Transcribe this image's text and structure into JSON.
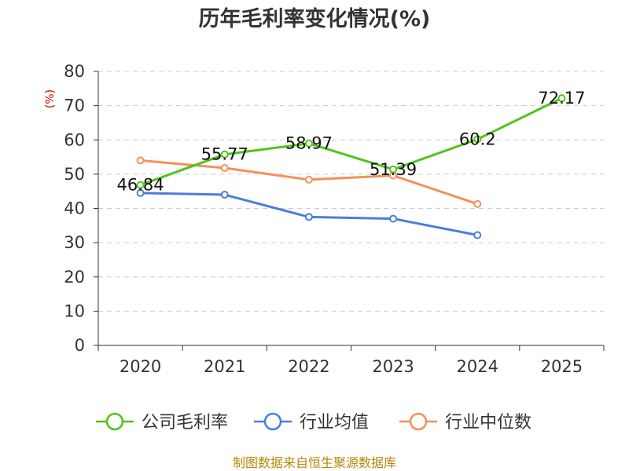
{
  "chart_data": {
    "type": "line",
    "title": "历年毛利率变化情况(%)",
    "ylabel": "(%)",
    "xlabel": "",
    "ylim": [
      0,
      80
    ],
    "yticks": [
      0,
      10,
      20,
      30,
      40,
      50,
      60,
      70,
      80
    ],
    "categories": [
      "2020",
      "2021",
      "2022",
      "2023",
      "2024",
      "2025"
    ],
    "grid": true,
    "legend_position": "bottom",
    "series": [
      {
        "name": "公司毛利率",
        "color": "#52c41a",
        "values": [
          46.84,
          55.77,
          58.97,
          51.39,
          60.2,
          72.17
        ],
        "labels": [
          "46.84",
          "55.77",
          "58.97",
          "51.39",
          "60.2",
          "72.17"
        ]
      },
      {
        "name": "行业均值",
        "color": "#4a7fd8",
        "values": [
          44.5,
          44.0,
          37.5,
          37.0,
          32.2,
          null
        ]
      },
      {
        "name": "行业中位数",
        "color": "#f5905a",
        "values": [
          54.0,
          51.8,
          48.4,
          49.6,
          41.3,
          null
        ]
      }
    ]
  },
  "footer": {
    "source": "制图数据来自恒生聚源数据库"
  }
}
